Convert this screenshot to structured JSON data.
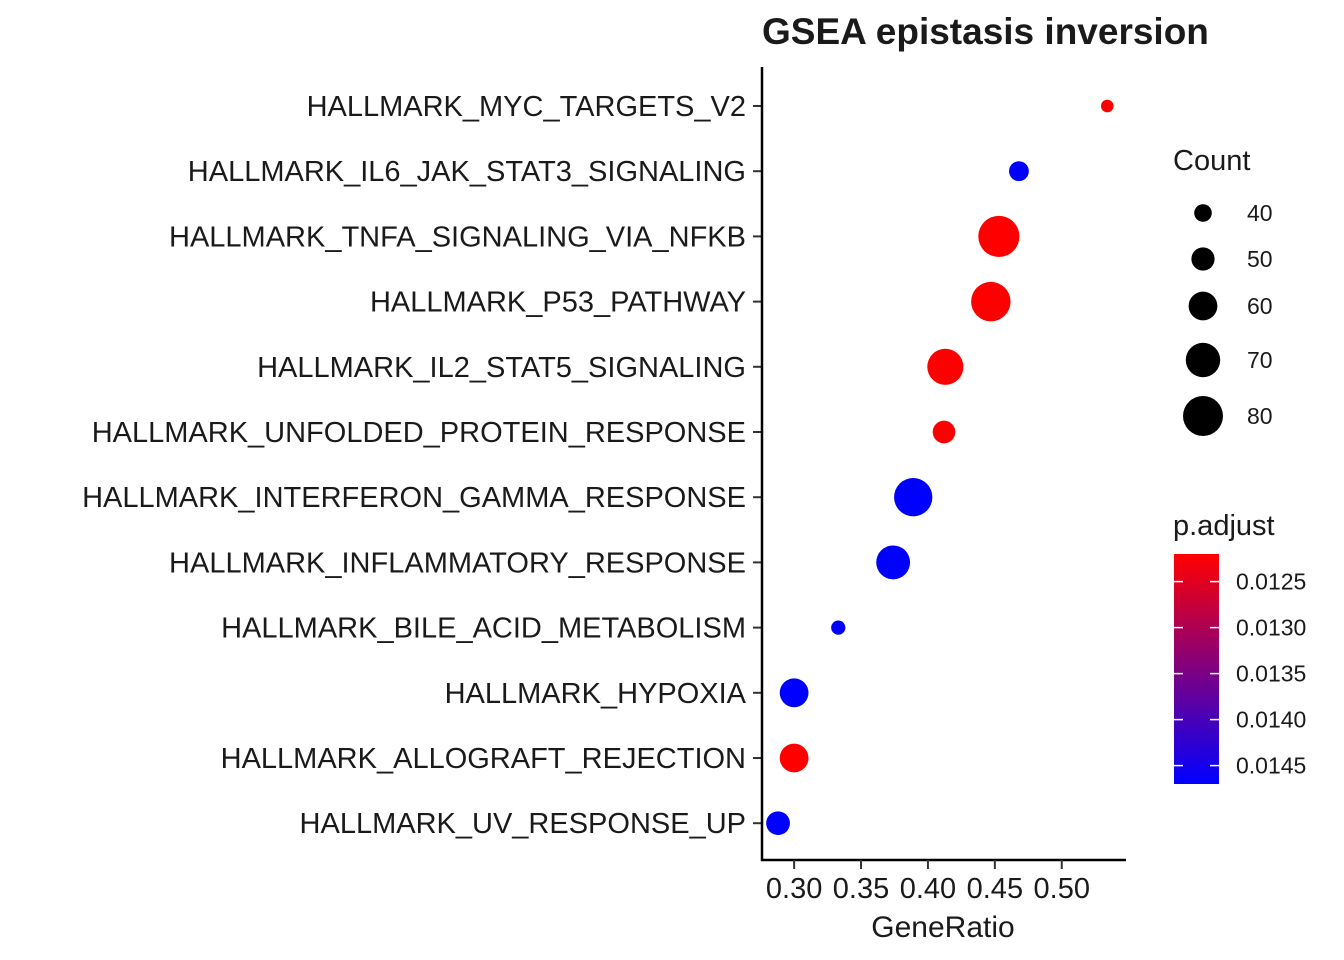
{
  "chart_data": {
    "type": "scatter",
    "title": "GSEA epistasis inversion",
    "xlabel": "GeneRatio",
    "ylabel": "",
    "xlim": [
      0.276,
      0.548
    ],
    "x_ticks": [
      "0.30",
      "0.35",
      "0.40",
      "0.45",
      "0.50"
    ],
    "x_tick_values": [
      0.3,
      0.35,
      0.4,
      0.45,
      0.5
    ],
    "categories": [
      "HALLMARK_MYC_TARGETS_V2",
      "HALLMARK_IL6_JAK_STAT3_SIGNALING",
      "HALLMARK_TNFA_SIGNALING_VIA_NFKB",
      "HALLMARK_P53_PATHWAY",
      "HALLMARK_IL2_STAT5_SIGNALING",
      "HALLMARK_UNFOLDED_PROTEIN_RESPONSE",
      "HALLMARK_INTERFERON_GAMMA_RESPONSE",
      "HALLMARK_INFLAMMATORY_RESPONSE",
      "HALLMARK_BILE_ACID_METABOLISM",
      "HALLMARK_HYPOXIA",
      "HALLMARK_ALLOGRAFT_REJECTION",
      "HALLMARK_UV_RESPONSE_UP"
    ],
    "points": [
      {
        "term": "HALLMARK_MYC_TARGETS_V2",
        "gene_ratio": 0.534,
        "count": 31,
        "p_adjust": 0.0122
      },
      {
        "term": "HALLMARK_IL6_JAK_STAT3_SIGNALING",
        "gene_ratio": 0.468,
        "count": 44,
        "p_adjust": 0.0147
      },
      {
        "term": "HALLMARK_TNFA_SIGNALING_VIA_NFKB",
        "gene_ratio": 0.453,
        "count": 82,
        "p_adjust": 0.0122
      },
      {
        "term": "HALLMARK_P53_PATHWAY",
        "gene_ratio": 0.447,
        "count": 79,
        "p_adjust": 0.0122
      },
      {
        "term": "HALLMARK_IL2_STAT5_SIGNALING",
        "gene_ratio": 0.413,
        "count": 73,
        "p_adjust": 0.0122
      },
      {
        "term": "HALLMARK_UNFOLDED_PROTEIN_RESPONSE",
        "gene_ratio": 0.412,
        "count": 49,
        "p_adjust": 0.0122
      },
      {
        "term": "HALLMARK_INTERFERON_GAMMA_RESPONSE",
        "gene_ratio": 0.389,
        "count": 77,
        "p_adjust": 0.0147
      },
      {
        "term": "HALLMARK_INFLAMMATORY_RESPONSE",
        "gene_ratio": 0.374,
        "count": 69,
        "p_adjust": 0.0147
      },
      {
        "term": "HALLMARK_BILE_ACID_METABOLISM",
        "gene_ratio": 0.333,
        "count": 34,
        "p_adjust": 0.0147
      },
      {
        "term": "HALLMARK_HYPOXIA",
        "gene_ratio": 0.3,
        "count": 60,
        "p_adjust": 0.0147
      },
      {
        "term": "HALLMARK_ALLOGRAFT_REJECTION",
        "gene_ratio": 0.3,
        "count": 60,
        "p_adjust": 0.0122
      },
      {
        "term": "HALLMARK_UV_RESPONSE_UP",
        "gene_ratio": 0.288,
        "count": 51,
        "p_adjust": 0.0147
      }
    ],
    "legend_size": {
      "title": "Count",
      "breaks": [
        40,
        50,
        60,
        70,
        80
      ],
      "labels": [
        "40",
        "50",
        "60",
        "70",
        "80"
      ]
    },
    "legend_color": {
      "title": "p.adjust",
      "breaks": [
        0.0125,
        0.013,
        0.0135,
        0.014,
        0.0145
      ],
      "labels": [
        "0.0125",
        "0.0130",
        "0.0135",
        "0.0140",
        "0.0145"
      ],
      "range": [
        0.0122,
        0.0147
      ],
      "low_color": "#ff0000",
      "high_color": "#0000ff"
    },
    "grid": false,
    "legend_position": "right"
  }
}
